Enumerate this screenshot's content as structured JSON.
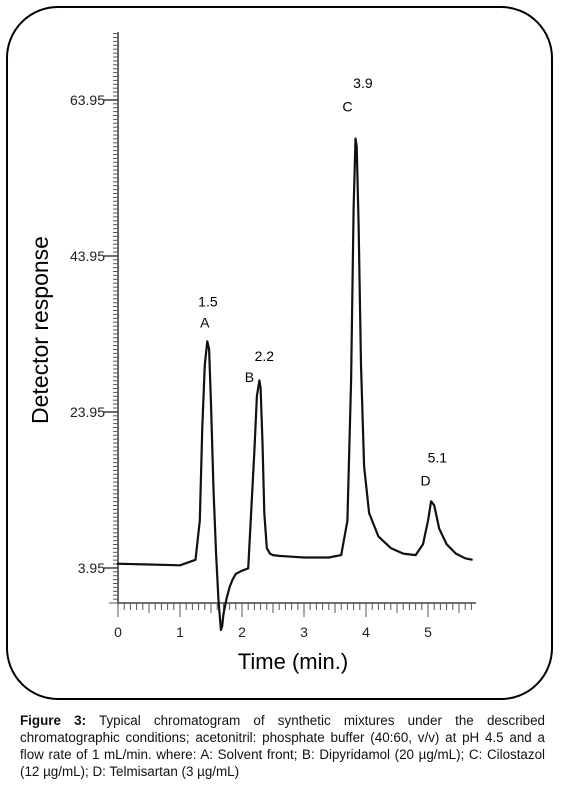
{
  "chart_data": {
    "type": "line",
    "xlabel": "Time (min.)",
    "ylabel": "Detector response",
    "xlim": [
      0,
      5.75
    ],
    "ylim": [
      -0.5,
      70
    ],
    "x_ticks": [
      0,
      1,
      2,
      3,
      4,
      5
    ],
    "y_ticks": [
      3.95,
      23.95,
      43.95,
      63.95
    ],
    "x_tick_labels": [
      "0",
      "1",
      "2",
      "3",
      "4",
      "5"
    ],
    "y_tick_labels": [
      "3.95",
      "23.95",
      "43.95",
      "63.95"
    ],
    "grid": false,
    "series": [
      {
        "x": [
          -0.02,
          0.5,
          1.0,
          1.25,
          1.32,
          1.36,
          1.4,
          1.44,
          1.47,
          1.5,
          1.54,
          1.58,
          1.62,
          1.66,
          1.68,
          1.7,
          1.75,
          1.8,
          1.85,
          1.9,
          2.0,
          2.1,
          2.2,
          2.24,
          2.28,
          2.3,
          2.33,
          2.36,
          2.4,
          2.45,
          2.5,
          2.6,
          2.8,
          3.0,
          3.2,
          3.4,
          3.6,
          3.7,
          3.76,
          3.8,
          3.83,
          3.85,
          3.88,
          3.92,
          3.97,
          4.05,
          4.2,
          4.4,
          4.6,
          4.8,
          4.92,
          5.0,
          5.05,
          5.1,
          5.18,
          5.3,
          5.45,
          5.6,
          5.72
        ],
        "y": [
          4.5,
          4.4,
          4.3,
          5.0,
          10.0,
          22.0,
          30.0,
          33.0,
          32.0,
          25.0,
          14.0,
          6.0,
          0.0,
          -4.0,
          -3.5,
          -2.0,
          0.0,
          1.5,
          2.5,
          3.2,
          3.6,
          3.9,
          19.0,
          26.0,
          28.0,
          27.0,
          20.0,
          11.0,
          6.5,
          5.8,
          5.6,
          5.5,
          5.4,
          5.3,
          5.3,
          5.3,
          5.6,
          10.0,
          28.0,
          50.0,
          59.0,
          58.0,
          48.0,
          30.0,
          17.0,
          11.0,
          8.0,
          6.5,
          5.8,
          5.6,
          7.0,
          10.0,
          12.5,
          12.0,
          9.0,
          7.0,
          5.8,
          5.2,
          5.0
        ]
      }
    ],
    "annotations": [
      {
        "text": "1.5",
        "x": 1.45,
        "y": 37.5
      },
      {
        "text": "A",
        "x": 1.4,
        "y": 34.8
      },
      {
        "text": "2.2",
        "x": 2.36,
        "y": 30.5
      },
      {
        "text": "B",
        "x": 2.12,
        "y": 27.8
      },
      {
        "text": "3.9",
        "x": 3.95,
        "y": 65.5
      },
      {
        "text": "C",
        "x": 3.7,
        "y": 62.5
      },
      {
        "text": "5.1",
        "x": 5.15,
        "y": 17.5
      },
      {
        "text": "D",
        "x": 4.96,
        "y": 14.5
      }
    ]
  },
  "caption": {
    "label": "Figure 3:",
    "text": " Typical chromatogram of synthetic mixtures under the described chromatographic conditions; acetonitril: phosphate buffer (40:60, v/v) at pH 4.5 and a flow rate of 1 mL/min. where: A: Solvent front; B: Dipyridamol (20 µg/mL); C: Cilostazol (12 µg/mL); D: Telmisartan (3 µg/mL)"
  }
}
